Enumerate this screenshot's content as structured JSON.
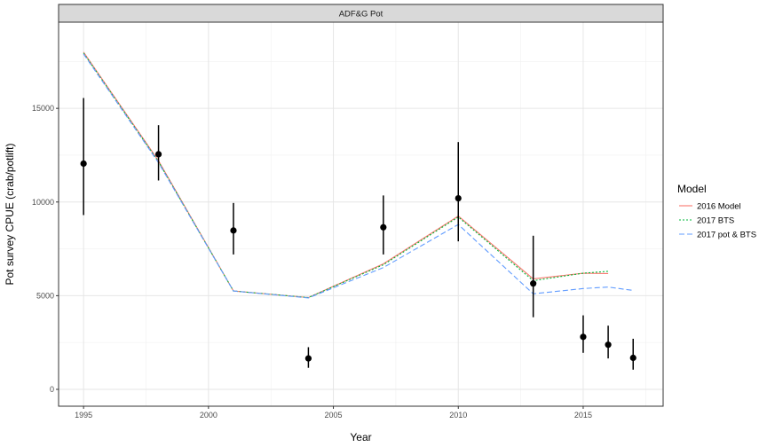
{
  "chart_data": {
    "type": "line",
    "facet_title": "ADF&G Pot",
    "xlabel": "Year",
    "ylabel": "Pot survey CPUE (crab/potlift)",
    "xlim": [
      1994,
      2018.2
    ],
    "ylim": [
      -900,
      19600
    ],
    "x_ticks": [
      1995,
      2000,
      2005,
      2010,
      2015
    ],
    "y_ticks": [
      0,
      5000,
      10000,
      15000
    ],
    "grid": true,
    "legend": {
      "title": "Model",
      "placement": "right"
    },
    "observed": {
      "x": [
        1995,
        1998,
        2001,
        2004,
        2007,
        2010,
        2013,
        2015,
        2016,
        2017
      ],
      "y": [
        12050,
        12550,
        8480,
        1650,
        8650,
        10200,
        5650,
        2800,
        2380,
        1680
      ],
      "lower": [
        9300,
        11150,
        7200,
        1150,
        7200,
        7900,
        3850,
        1950,
        1650,
        1050
      ],
      "upper": [
        15550,
        14100,
        9950,
        2250,
        10350,
        13200,
        8200,
        3950,
        3400,
        2700
      ]
    },
    "series": [
      {
        "name": "2016 Model",
        "color": "#f8766d",
        "dash": "solid",
        "x": [
          1995,
          1998,
          2001,
          2004,
          2007,
          2010,
          2013,
          2015,
          2016
        ],
        "y": [
          18000,
          12200,
          5250,
          4900,
          6700,
          9250,
          5900,
          6200,
          6180
        ]
      },
      {
        "name": "2017 BTS",
        "color": "#00ba38",
        "dash": "dotted",
        "x": [
          1995,
          1998,
          2001,
          2004,
          2007,
          2010,
          2013,
          2015,
          2016
        ],
        "y": [
          17950,
          12150,
          5250,
          4900,
          6650,
          9200,
          5800,
          6200,
          6300
        ]
      },
      {
        "name": "2017 pot & BTS",
        "color": "#619cff",
        "dash": "dashed",
        "x": [
          1995,
          1998,
          2001,
          2004,
          2007,
          2010,
          2013,
          2015,
          2016,
          2017
        ],
        "y": [
          17900,
          12100,
          5250,
          4880,
          6500,
          8800,
          5100,
          5380,
          5460,
          5280
        ]
      }
    ]
  }
}
